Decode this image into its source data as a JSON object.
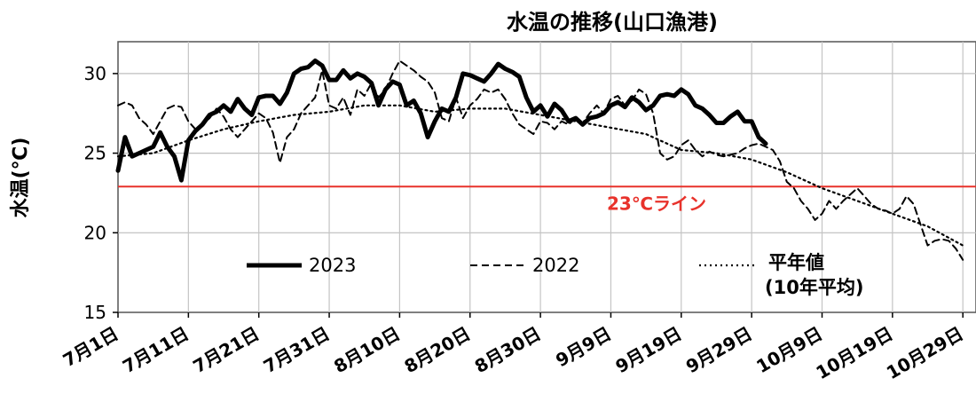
{
  "chart_data": {
    "type": "line",
    "title": "水温の推移(山口漁港)",
    "ylabel": "水温(℃)",
    "xlabel": "",
    "ylim": [
      15,
      32
    ],
    "xlim": [
      0,
      120
    ],
    "yticks": [
      15,
      20,
      25,
      30
    ],
    "xtick_labels": [
      "7月1日",
      "7月11日",
      "7月21日",
      "7月31日",
      "8月10日",
      "8月20日",
      "8月30日",
      "9月9日",
      "9月19日",
      "9月29日",
      "10月9日",
      "10月19日",
      "10月29日"
    ],
    "x_unit": "days since 7月1日",
    "grid": true,
    "reference_line": {
      "value": 22.9,
      "label": "23℃ライン",
      "color": "#e8322b"
    },
    "series": [
      {
        "name": "2023",
        "style": "solid-thick",
        "color": "#000000",
        "x": [
          0,
          1,
          2,
          3,
          4,
          5,
          6,
          7,
          8,
          9,
          10,
          11,
          12,
          13,
          14,
          15,
          16,
          17,
          18,
          19,
          20,
          21,
          22,
          23,
          24,
          25,
          26,
          27,
          28,
          29,
          30,
          31,
          32,
          33,
          34,
          35,
          36,
          37,
          38,
          39,
          40,
          41,
          42,
          43,
          44,
          45,
          46,
          47,
          48,
          49,
          50,
          51,
          52,
          53,
          54,
          55,
          56,
          57,
          58,
          59,
          60,
          61,
          62,
          63,
          64,
          65,
          66,
          67,
          68,
          69,
          70,
          71,
          72,
          73,
          74,
          75,
          76,
          77,
          78,
          79,
          80,
          81,
          82,
          83,
          84,
          85,
          86,
          87,
          88,
          89,
          90,
          91,
          92
        ],
        "values": [
          23.9,
          26.0,
          24.8,
          25.0,
          25.2,
          25.4,
          26.3,
          25.4,
          24.8,
          23.3,
          25.8,
          26.4,
          26.8,
          27.4,
          27.6,
          28.0,
          27.6,
          28.4,
          27.8,
          27.4,
          28.5,
          28.6,
          28.6,
          28.1,
          28.8,
          30.0,
          30.3,
          30.4,
          30.8,
          30.5,
          29.6,
          29.6,
          30.2,
          29.7,
          30.0,
          29.8,
          29.4,
          28.0,
          29.0,
          29.5,
          29.3,
          28.0,
          28.3,
          27.5,
          26.0,
          27.0,
          27.8,
          27.6,
          28.5,
          30.0,
          29.9,
          29.7,
          29.5,
          30.0,
          30.6,
          30.3,
          30.1,
          29.8,
          28.5,
          27.6,
          28.0,
          27.3,
          28.1,
          27.7,
          27.0,
          27.2,
          26.8,
          27.2,
          27.3,
          27.5,
          28.0,
          28.2,
          27.9,
          28.5,
          28.2,
          27.7,
          28.0,
          28.6,
          28.7,
          28.6,
          29.0,
          28.7,
          28.0,
          27.8,
          27.4,
          26.9,
          26.9,
          27.3,
          27.6,
          27.0,
          27.0,
          26.0,
          25.6
        ]
      },
      {
        "name": "2022",
        "style": "dashed",
        "color": "#000000",
        "x": [
          0,
          1,
          2,
          3,
          4,
          5,
          6,
          7,
          8,
          9,
          10,
          11,
          12,
          13,
          14,
          15,
          16,
          17,
          18,
          19,
          20,
          21,
          22,
          23,
          24,
          25,
          26,
          27,
          28,
          29,
          30,
          31,
          32,
          33,
          34,
          35,
          36,
          37,
          38,
          39,
          40,
          41,
          42,
          43,
          44,
          45,
          46,
          47,
          48,
          49,
          50,
          51,
          52,
          53,
          54,
          55,
          56,
          57,
          58,
          59,
          60,
          61,
          62,
          63,
          64,
          65,
          66,
          67,
          68,
          69,
          70,
          71,
          72,
          73,
          74,
          75,
          76,
          77,
          78,
          79,
          80,
          81,
          82,
          83,
          84,
          85,
          86,
          87,
          88,
          89,
          90,
          91,
          92,
          93,
          94,
          95,
          96,
          97,
          98,
          99,
          100,
          101,
          102,
          103,
          104,
          105,
          106,
          107,
          108,
          109,
          110,
          111,
          112,
          113,
          114,
          115,
          116,
          117,
          118,
          119,
          120
        ],
        "values": [
          28.0,
          28.2,
          28.0,
          27.2,
          26.8,
          26.2,
          27.0,
          27.8,
          28.0,
          27.9,
          27.0,
          26.5,
          26.8,
          27.2,
          27.8,
          27.3,
          26.5,
          26.0,
          26.5,
          27.0,
          27.5,
          27.2,
          26.3,
          24.4,
          26.0,
          26.5,
          27.5,
          28.0,
          28.5,
          30.2,
          28.0,
          27.8,
          28.5,
          27.4,
          29.0,
          28.6,
          29.4,
          28.5,
          29.0,
          30.0,
          30.8,
          30.5,
          30.2,
          29.8,
          29.5,
          28.8,
          27.2,
          27.0,
          28.5,
          27.2,
          28.0,
          28.4,
          29.0,
          28.8,
          29.0,
          28.4,
          27.5,
          26.8,
          26.5,
          26.2,
          27.0,
          26.9,
          26.5,
          27.0,
          26.8,
          27.2,
          26.9,
          27.5,
          28.0,
          27.5,
          28.4,
          28.6,
          28.0,
          28.3,
          29.0,
          28.7,
          27.5,
          25.0,
          24.6,
          24.8,
          25.5,
          25.8,
          25.2,
          24.8,
          25.1,
          24.9,
          24.8,
          24.9,
          25.0,
          25.3,
          25.5,
          25.6,
          25.4,
          25.2,
          24.5,
          23.2,
          22.8,
          22.0,
          21.5,
          20.8,
          21.2,
          22.0,
          21.5,
          22.0,
          22.4,
          22.8,
          22.3,
          21.8,
          21.5,
          21.4,
          21.2,
          21.5,
          22.3,
          21.8,
          20.5,
          19.2,
          19.5,
          19.6,
          19.5,
          19.0,
          18.3
        ]
      },
      {
        "name": "平年値 (10年平均)",
        "style": "dotted",
        "color": "#000000",
        "x": [
          0,
          5,
          10,
          15,
          20,
          25,
          30,
          35,
          40,
          45,
          50,
          55,
          60,
          65,
          70,
          75,
          80,
          85,
          90,
          95,
          100,
          105,
          110,
          115,
          120
        ],
        "values": [
          24.8,
          25.0,
          25.8,
          26.5,
          27.0,
          27.4,
          27.6,
          28.0,
          28.0,
          27.6,
          27.8,
          27.8,
          27.4,
          27.0,
          26.6,
          26.2,
          25.2,
          25.0,
          24.6,
          23.8,
          22.8,
          22.0,
          21.2,
          20.4,
          19.2
        ]
      }
    ],
    "legend": [
      {
        "label": "2023",
        "style": "solid-thick"
      },
      {
        "label": "2022",
        "style": "dashed"
      },
      {
        "label": "平年値",
        "sublabel": "(10年平均)",
        "style": "dotted"
      }
    ]
  }
}
